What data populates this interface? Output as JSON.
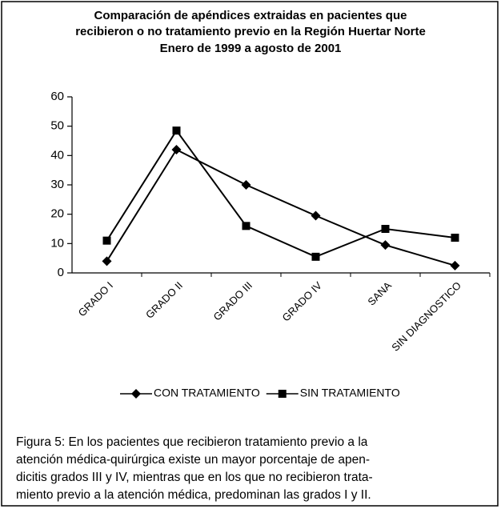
{
  "chart_data": {
    "type": "line",
    "title": [
      "Comparación de apéndices extraidas en pacientes que",
      "recibieron o no tratamiento previo en la Región Huertar Norte",
      "Enero de 1999 a agosto de 2001"
    ],
    "categories": [
      "GRADO I",
      "GRADO II",
      "GRADO III",
      "GRADO IV",
      "SANA",
      "SIN DIAGNOSTICO"
    ],
    "series": [
      {
        "name": "CON TRATAMIENTO",
        "marker": "diamond",
        "color": "#000000",
        "values": [
          4,
          42,
          30,
          19.5,
          9.5,
          2.5
        ]
      },
      {
        "name": "SIN TRATAMIENTO",
        "marker": "square",
        "color": "#000000",
        "values": [
          11,
          48.5,
          16,
          5.5,
          15,
          12
        ]
      }
    ],
    "ylim": [
      0,
      60
    ],
    "yticks": [
      0,
      10,
      20,
      30,
      40,
      50,
      60
    ],
    "caption": [
      "Figura 5: En los pacientes que recibieron tratamiento previo a la",
      "atención médica-quirúrgica existe un mayor porcentaje de apen-",
      "dicitis grados III y IV, mientras que en los que no recibieron trata-",
      "miento previo a la atención médica, predominan las  grados I y  II."
    ]
  }
}
